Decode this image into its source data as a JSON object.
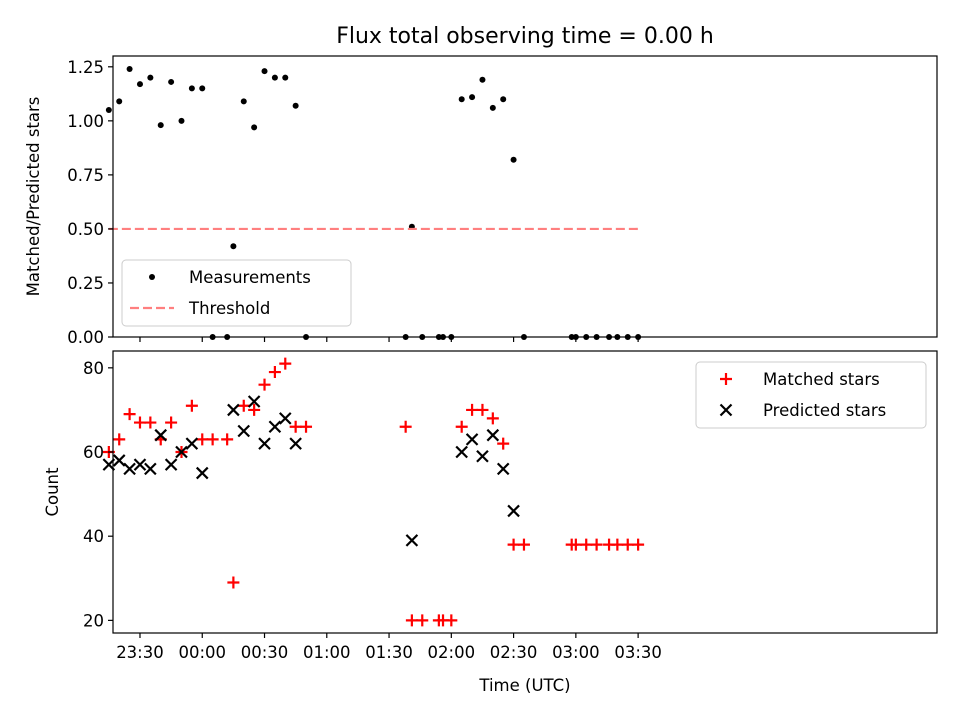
{
  "figure": {
    "title": "Flux total observing time = 0.00 h"
  },
  "chart_data": [
    {
      "type": "scatter",
      "title": "Flux total observing time = 0.00 h",
      "xlabel": "",
      "ylabel": "Matched/Predicted stars",
      "xlim": [
        -43,
        354
      ],
      "ylim": [
        0,
        1.3
      ],
      "yticks": [
        0.0,
        0.25,
        0.5,
        0.75,
        1.0,
        1.25
      ],
      "ytick_labels": [
        "0.00",
        "0.25",
        "0.50",
        "0.75",
        "1.00",
        "1.25"
      ],
      "xticks": [
        -30,
        0,
        30,
        60,
        90,
        120,
        150,
        180,
        210
      ],
      "legend": {
        "position": "lower-left",
        "entries": [
          {
            "label": "Measurements",
            "marker": "dot",
            "color": "#000000"
          },
          {
            "label": "Threshold",
            "marker": "dashed-line",
            "color": "#ff7f7f"
          }
        ]
      },
      "series": [
        {
          "name": "Measurements",
          "marker": "dot",
          "color": "#000000",
          "points": [
            [
              -45,
              1.05
            ],
            [
              -40,
              1.09
            ],
            [
              -35,
              1.24
            ],
            [
              -30,
              1.17
            ],
            [
              -25,
              1.2
            ],
            [
              -20,
              0.98
            ],
            [
              -15,
              1.18
            ],
            [
              -10,
              1.0
            ],
            [
              -5,
              1.15
            ],
            [
              0,
              1.15
            ],
            [
              5,
              0.0
            ],
            [
              12,
              0.0
            ],
            [
              15,
              0.42
            ],
            [
              20,
              1.09
            ],
            [
              25,
              0.97
            ],
            [
              30,
              1.23
            ],
            [
              35,
              1.2
            ],
            [
              40,
              1.2
            ],
            [
              45,
              1.07
            ],
            [
              50,
              0.0
            ],
            [
              98,
              0.0
            ],
            [
              101,
              0.51
            ],
            [
              106,
              0.0
            ],
            [
              114,
              0.0
            ],
            [
              116,
              0.0
            ],
            [
              120,
              0.0
            ],
            [
              125,
              1.1
            ],
            [
              130,
              1.11
            ],
            [
              135,
              1.19
            ],
            [
              140,
              1.06
            ],
            [
              145,
              1.1
            ],
            [
              150,
              0.82
            ],
            [
              155,
              0.0
            ],
            [
              178,
              0.0
            ],
            [
              180,
              0.0
            ],
            [
              185,
              0.0
            ],
            [
              190,
              0.0
            ],
            [
              196,
              0.0
            ],
            [
              200,
              0.0
            ],
            [
              205,
              0.0
            ],
            [
              210,
              0.0
            ]
          ]
        },
        {
          "name": "Threshold",
          "type": "line",
          "style": "dashed",
          "color": "#ff7f7f",
          "x": [
            -45,
            210
          ],
          "y": [
            0.5,
            0.5
          ]
        }
      ]
    },
    {
      "type": "scatter",
      "title": "",
      "xlabel": "Time (UTC)",
      "ylabel": "Count",
      "xlim": [
        -43,
        354
      ],
      "ylim": [
        17,
        84
      ],
      "yticks": [
        20,
        40,
        60,
        80
      ],
      "ytick_labels": [
        "20",
        "40",
        "60",
        "80"
      ],
      "xticks": [
        -30,
        0,
        30,
        60,
        90,
        120,
        150,
        180,
        210
      ],
      "xtick_labels": [
        "23:30",
        "00:00",
        "00:30",
        "01:00",
        "01:30",
        "02:00",
        "02:30",
        "03:00",
        "03:30"
      ],
      "legend": {
        "position": "upper-right",
        "entries": [
          {
            "label": "Matched stars",
            "marker": "plus",
            "color": "#ff0000"
          },
          {
            "label": "Predicted stars",
            "marker": "x",
            "color": "#000000"
          }
        ]
      },
      "series": [
        {
          "name": "Matched stars",
          "marker": "plus",
          "color": "#ff0000",
          "points": [
            [
              -45,
              60
            ],
            [
              -40,
              63
            ],
            [
              -35,
              69
            ],
            [
              -30,
              67
            ],
            [
              -25,
              67
            ],
            [
              -20,
              63
            ],
            [
              -15,
              67
            ],
            [
              -10,
              60
            ],
            [
              -5,
              71
            ],
            [
              0,
              63
            ],
            [
              5,
              63
            ],
            [
              12,
              63
            ],
            [
              15,
              29
            ],
            [
              20,
              71
            ],
            [
              25,
              70
            ],
            [
              30,
              76
            ],
            [
              35,
              79
            ],
            [
              40,
              81
            ],
            [
              45,
              66
            ],
            [
              50,
              66
            ],
            [
              98,
              66
            ],
            [
              101,
              20
            ],
            [
              106,
              20
            ],
            [
              114,
              20
            ],
            [
              116,
              20
            ],
            [
              120,
              20
            ],
            [
              125,
              66
            ],
            [
              130,
              70
            ],
            [
              135,
              70
            ],
            [
              140,
              68
            ],
            [
              145,
              62
            ],
            [
              150,
              38
            ],
            [
              155,
              38
            ],
            [
              178,
              38
            ],
            [
              180,
              38
            ],
            [
              185,
              38
            ],
            [
              190,
              38
            ],
            [
              196,
              38
            ],
            [
              200,
              38
            ],
            [
              205,
              38
            ],
            [
              210,
              38
            ]
          ]
        },
        {
          "name": "Predicted stars",
          "marker": "x",
          "color": "#000000",
          "points": [
            [
              -45,
              57
            ],
            [
              -40,
              58
            ],
            [
              -35,
              56
            ],
            [
              -30,
              57
            ],
            [
              -25,
              56
            ],
            [
              -20,
              64
            ],
            [
              -15,
              57
            ],
            [
              -10,
              60
            ],
            [
              -5,
              62
            ],
            [
              0,
              55
            ],
            [
              15,
              70
            ],
            [
              20,
              65
            ],
            [
              25,
              72
            ],
            [
              30,
              62
            ],
            [
              35,
              66
            ],
            [
              40,
              68
            ],
            [
              45,
              62
            ],
            [
              101,
              39
            ],
            [
              125,
              60
            ],
            [
              130,
              63
            ],
            [
              135,
              59
            ],
            [
              140,
              64
            ],
            [
              145,
              56
            ],
            [
              150,
              46
            ]
          ]
        }
      ]
    }
  ]
}
